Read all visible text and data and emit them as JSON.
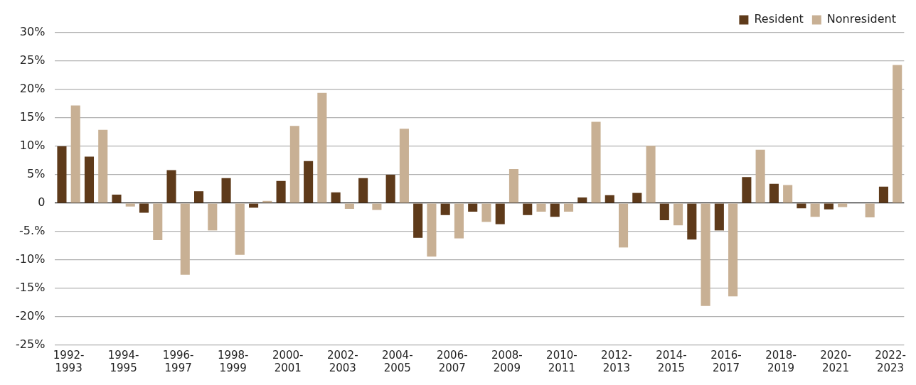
{
  "chart_data": {
    "type": "bar",
    "categories": [
      "1992-1993",
      null,
      "1994-1995",
      null,
      "1996-1997",
      null,
      "1998-1999",
      null,
      "2000-2001",
      null,
      "2002-2003",
      null,
      "2004-2005",
      null,
      "2006-2007",
      null,
      "2008-2009",
      null,
      "2010-2011",
      null,
      "2012-2013",
      null,
      "2014-2015",
      null,
      "2016-2017",
      null,
      "2018-2019",
      null,
      "2020-2021",
      null,
      "2022-2023"
    ],
    "series": [
      {
        "name": "Resident",
        "color": "#5e3a1a",
        "values": [
          10.0,
          8.2,
          1.5,
          -1.7,
          5.8,
          2.1,
          4.4,
          -0.8,
          3.9,
          7.4,
          1.9,
          4.4,
          5.0,
          -6.1,
          -2.1,
          -1.5,
          -3.7,
          -2.1,
          -2.4,
          1.0,
          1.4,
          1.8,
          -3.0,
          -6.4,
          -4.8,
          4.6,
          3.4,
          -0.9,
          -1.1,
          0,
          2.9
        ]
      },
      {
        "name": "Nonresident",
        "color": "#c8b094",
        "values": [
          17.2,
          12.9,
          -0.6,
          -6.5,
          -12.6,
          -4.8,
          -9.1,
          0.4,
          13.6,
          19.4,
          -1.0,
          -1.2,
          13.1,
          -9.4,
          -6.2,
          -3.3,
          6.0,
          -1.5,
          -1.5,
          14.3,
          -7.8,
          10.1,
          -3.9,
          -18.1,
          -16.4,
          9.4,
          3.2,
          -2.4,
          -0.7,
          -2.5,
          24.3
        ]
      }
    ],
    "ylim": [
      -25,
      30
    ],
    "yticks": [
      {
        "value": -25,
        "label": "-25%"
      },
      {
        "value": -20,
        "label": "-20%"
      },
      {
        "value": -15,
        "label": "-15%"
      },
      {
        "value": -10,
        "label": "-10%"
      },
      {
        "value": -5,
        "label": "-5.%"
      },
      0,
      {
        "value": 5,
        "label": "5%"
      },
      {
        "value": 10,
        "label": "10%"
      },
      {
        "value": 15,
        "label": "15%"
      },
      {
        "value": 20,
        "label": "20%"
      },
      {
        "value": 25,
        "label": "25%"
      },
      {
        "value": 30,
        "label": "30%"
      }
    ],
    "grid": "y",
    "legend": "top"
  }
}
